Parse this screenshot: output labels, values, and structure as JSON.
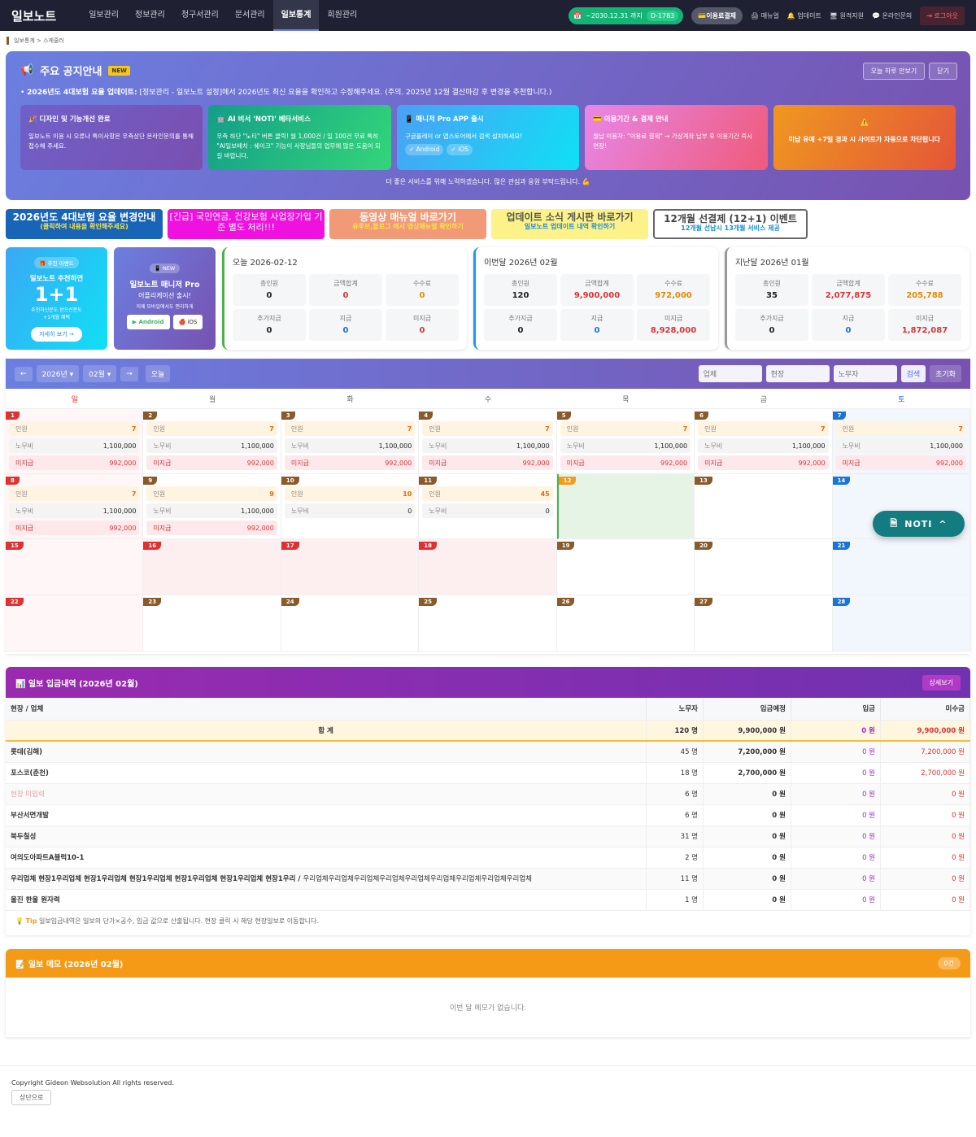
{
  "nav": {
    "logo": "일보노트",
    "menu": [
      "일보관리",
      "정보관리",
      "청구서관리",
      "문서관리",
      "일보통계",
      "회원관리"
    ],
    "active": "일보통계",
    "period": "~2030.12.31 까지",
    "dday": "D-1783",
    "pay": "이용료결제",
    "manual": "매뉴얼",
    "update": "업데이트",
    "remote": "원격지원",
    "inquiry": "온라인문의",
    "logout": "로그아웃"
  },
  "breadcrumb": "일보통계 > 스케줄러",
  "notice": {
    "title": "주요 공지안내",
    "badge": "NEW",
    "hide_today": "오늘 하루 안보기",
    "close": "닫기",
    "line_bold": "2026년도 4대보험 요율 업데이트:",
    "line": " [정보관리 - 일보노트 설정]에서 2026년도 최신 요율을 확인하고 수정해주세요. (주의. 2025년 12월 결산마감 후 변경을 추천합니다.)",
    "cards": [
      {
        "title": "🎉 디자인 및 기능개선 완료",
        "text": "일보노트 이용 시 오류나 특이사항은 우측상단 온라인문의를 통해 접수해 주세요.",
        "bg": "linear-gradient(120deg,#6f60c8,#7a4fb0)"
      },
      {
        "title": "🤖 AI 비서 'NOTI' 베타서비스",
        "text": "우측 하단 \"노티\" 버튼 클릭! 월 1,000건 / 일 100건 무료 특히 \"AI일보배치 : 쉐이크\" 기능이 사장님들의 업무에 많은 도움이 되길 바랍니다.",
        "bg": "linear-gradient(120deg,#139e88,#33d67a)"
      },
      {
        "title": "📱 매니저 Pro APP 출시",
        "text": "구글플레이 or 앱스토어에서 검색 설치하세요!",
        "tags": [
          "✓ Android",
          "✓ iOS"
        ],
        "bg": "linear-gradient(120deg,#4aa0f5,#10e0f5)"
      },
      {
        "title": "💳 이용기간 & 결제 안내",
        "text": "월납 이용자: \"이용료 결제\" → 가상계좌 납부 후 이용기간 즉시 연장!",
        "bg": "linear-gradient(120deg,#e787e8,#ef5a7a)"
      },
      {
        "title": "⚠️",
        "text": "미납 유예 +7일 경과 시 사이트가 자동으로 차단됩니다",
        "bg": "linear-gradient(120deg,#ef9820,#e45538)"
      }
    ],
    "footer": "더 좋은 서비스를 위해 노력하겠습니다. 많은 관심과 응원 부탁드립니다. 💪"
  },
  "banners": [
    {
      "title": "2026년도 4대보험 요율 변경안내",
      "sub": "(클릭하여 내용을 확인해주세요)",
      "bg": "#1865b8",
      "tc": "#fff",
      "sc": "#f5e34a"
    },
    {
      "title": "[긴급] 국민연금, 건강보험 사업장가입 기준 별도 처리!!!",
      "sub": "",
      "bg": "#f010e0",
      "tc": "#fff",
      "sc": "#fff"
    },
    {
      "title": "동영상 매뉴얼 바로가기",
      "sub": "유투브,블로그 에서 영상매뉴얼 확인하기",
      "bg": "#f29a78",
      "tc": "#fff",
      "sc": "#f5e34a"
    },
    {
      "title": "업데이트 소식 게시판 바로가기",
      "sub": "일보노트 업데이트 내역 확인하기",
      "bg": "#fdf28a",
      "tc": "#555",
      "sc": "#1a8fd8"
    },
    {
      "title": "12개월 선결제 (12+1) 이벤트",
      "sub": "12개월 선납시 13개월 서비스 제공",
      "bg": "#fff",
      "tc": "#444",
      "sc": "#1a8fd8"
    }
  ],
  "promo": {
    "badge": "🎁 추천 이벤트",
    "line1": "일보노트 추천하면",
    "big": "1+1",
    "line2": "추천하신분도 받으신분도",
    "line3": "+1개월 혜택",
    "button": "자세히 보기 →"
  },
  "app": {
    "badge": "📱 NEW",
    "title": "일보노트 매니저 Pro",
    "sub": "어플리케이션 출시!",
    "desc": "이제 모바일에서도 편리하게",
    "android": "▶ Android",
    "ios": "🍎 iOS"
  },
  "stats": [
    {
      "title": "오늘 2026-02-12",
      "color": "#4caf50",
      "items": [
        [
          "총인원",
          "0"
        ],
        [
          "금액합계",
          "0"
        ],
        [
          "수수료",
          "0"
        ],
        [
          "추가지급",
          "0"
        ],
        [
          "지급",
          "0"
        ],
        [
          "미지급",
          "0"
        ]
      ]
    },
    {
      "title": "이번달 2026년 02월",
      "color": "#2196f3",
      "items": [
        [
          "총인원",
          "120"
        ],
        [
          "금액합계",
          "9,900,000"
        ],
        [
          "수수료",
          "972,000"
        ],
        [
          "추가지급",
          "0"
        ],
        [
          "지급",
          "0"
        ],
        [
          "미지급",
          "8,928,000"
        ]
      ]
    },
    {
      "title": "지난달 2026년 01월",
      "color": "#999999",
      "items": [
        [
          "총인원",
          "35"
        ],
        [
          "금액합계",
          "2,077,875"
        ],
        [
          "수수료",
          "205,788"
        ],
        [
          "추가지급",
          "0"
        ],
        [
          "지급",
          "0"
        ],
        [
          "미지급",
          "1,872,087"
        ]
      ]
    }
  ],
  "calendar": {
    "prev": "←",
    "year": "2026년 ▾",
    "month": "02월 ▾",
    "next": "→",
    "today": "오늘",
    "ph_company": "업체",
    "ph_site": "현장",
    "ph_worker": "노무자",
    "search": "검색",
    "reset": "초기화",
    "weekdays": [
      "일",
      "월",
      "화",
      "수",
      "목",
      "금",
      "토"
    ],
    "labels": {
      "people": "인원",
      "wage": "노무비",
      "unpaid": "미지급"
    },
    "weeks": [
      [
        {
          "d": "1",
          "t": "sun",
          "p": "7",
          "w": "1,100,000",
          "u": "992,000"
        },
        {
          "d": "2",
          "p": "7",
          "w": "1,100,000",
          "u": "992,000"
        },
        {
          "d": "3",
          "p": "7",
          "w": "1,100,000",
          "u": "992,000"
        },
        {
          "d": "4",
          "p": "7",
          "w": "1,100,000",
          "u": "992,000"
        },
        {
          "d": "5",
          "p": "7",
          "w": "1,100,000",
          "u": "992,000"
        },
        {
          "d": "6",
          "p": "7",
          "w": "1,100,000",
          "u": "992,000"
        },
        {
          "d": "7",
          "t": "sat",
          "p": "7",
          "w": "1,100,000",
          "u": "992,000"
        }
      ],
      [
        {
          "d": "8",
          "t": "sun",
          "p": "7",
          "w": "1,100,000",
          "u": "992,000"
        },
        {
          "d": "9",
          "p": "9",
          "w": "1,100,000",
          "u": "992,000"
        },
        {
          "d": "10",
          "p": "10",
          "w": "0"
        },
        {
          "d": "11",
          "p": "45",
          "w": "0"
        },
        {
          "d": "12",
          "t": "today"
        },
        {
          "d": "13"
        },
        {
          "d": "14",
          "t": "sat"
        }
      ],
      [
        {
          "d": "15",
          "t": "sun"
        },
        {
          "d": "16",
          "t": "hol"
        },
        {
          "d": "17",
          "t": "hol"
        },
        {
          "d": "18",
          "t": "hol"
        },
        {
          "d": "19"
        },
        {
          "d": "20"
        },
        {
          "d": "21",
          "t": "sat"
        }
      ],
      [
        {
          "d": "22",
          "t": "sun"
        },
        {
          "d": "23"
        },
        {
          "d": "24"
        },
        {
          "d": "25"
        },
        {
          "d": "26"
        },
        {
          "d": "27"
        },
        {
          "d": "28",
          "t": "sat"
        }
      ]
    ]
  },
  "noti_button": "NOTI",
  "income": {
    "title": "📊 일보 입금내역 (2026년 02월)",
    "detail": "상세보기",
    "headers": [
      "현장 / 업체",
      "노무자",
      "입금예정",
      "입금",
      "미수금"
    ],
    "sum": [
      "합 계",
      "120 명",
      "9,900,000 원",
      "0 원",
      "9,900,000 원"
    ],
    "rows": [
      [
        "롯데(김해)",
        "",
        "45 명",
        "7,200,000 원",
        "0 원",
        "7,200,000 원"
      ],
      [
        "포스코(춘천)",
        "",
        "18 명",
        "2,700,000 원",
        "0 원",
        "2,700,000 원"
      ],
      [
        "현장 미입력",
        "",
        "6 명",
        "0 원",
        "0 원",
        "0 원"
      ],
      [
        "부산서면개발",
        "",
        "6 명",
        "0 원",
        "0 원",
        "0 원"
      ],
      [
        "북두칠성",
        "",
        "31 명",
        "0 원",
        "0 원",
        "0 원"
      ],
      [
        "여의도아파트A블럭10-1",
        "",
        "2 명",
        "0 원",
        "0 원",
        "0 원"
      ],
      [
        "우리업체 현장1우리업체 현장1우리업체 현장1우리업체 현장1우리업체 현장1우리업체 현장1우리",
        "우리업체우리업체우리업체우리업체우리업체우리업체우리업체우리업체우리업체",
        "11 명",
        "0 원",
        "0 원",
        "0 원"
      ],
      [
        "울진 한울 원자력",
        "",
        "1 명",
        "0 원",
        "0 원",
        "0 원"
      ]
    ],
    "tip_label": "Tip",
    "tip": "일보입금내역은 일보의 단가×공수, 입금 값으로 산출됩니다. 현장 클릭 시 해당 현장일보로 이동합니다."
  },
  "memo": {
    "title": "📝 일보 메모 (2026년 02월)",
    "count": "0건",
    "empty": "이번 달 메모가 없습니다."
  },
  "footer": {
    "copyright": "Copyright Gideon Websolution All rights reserved.",
    "top": "상단으로"
  }
}
